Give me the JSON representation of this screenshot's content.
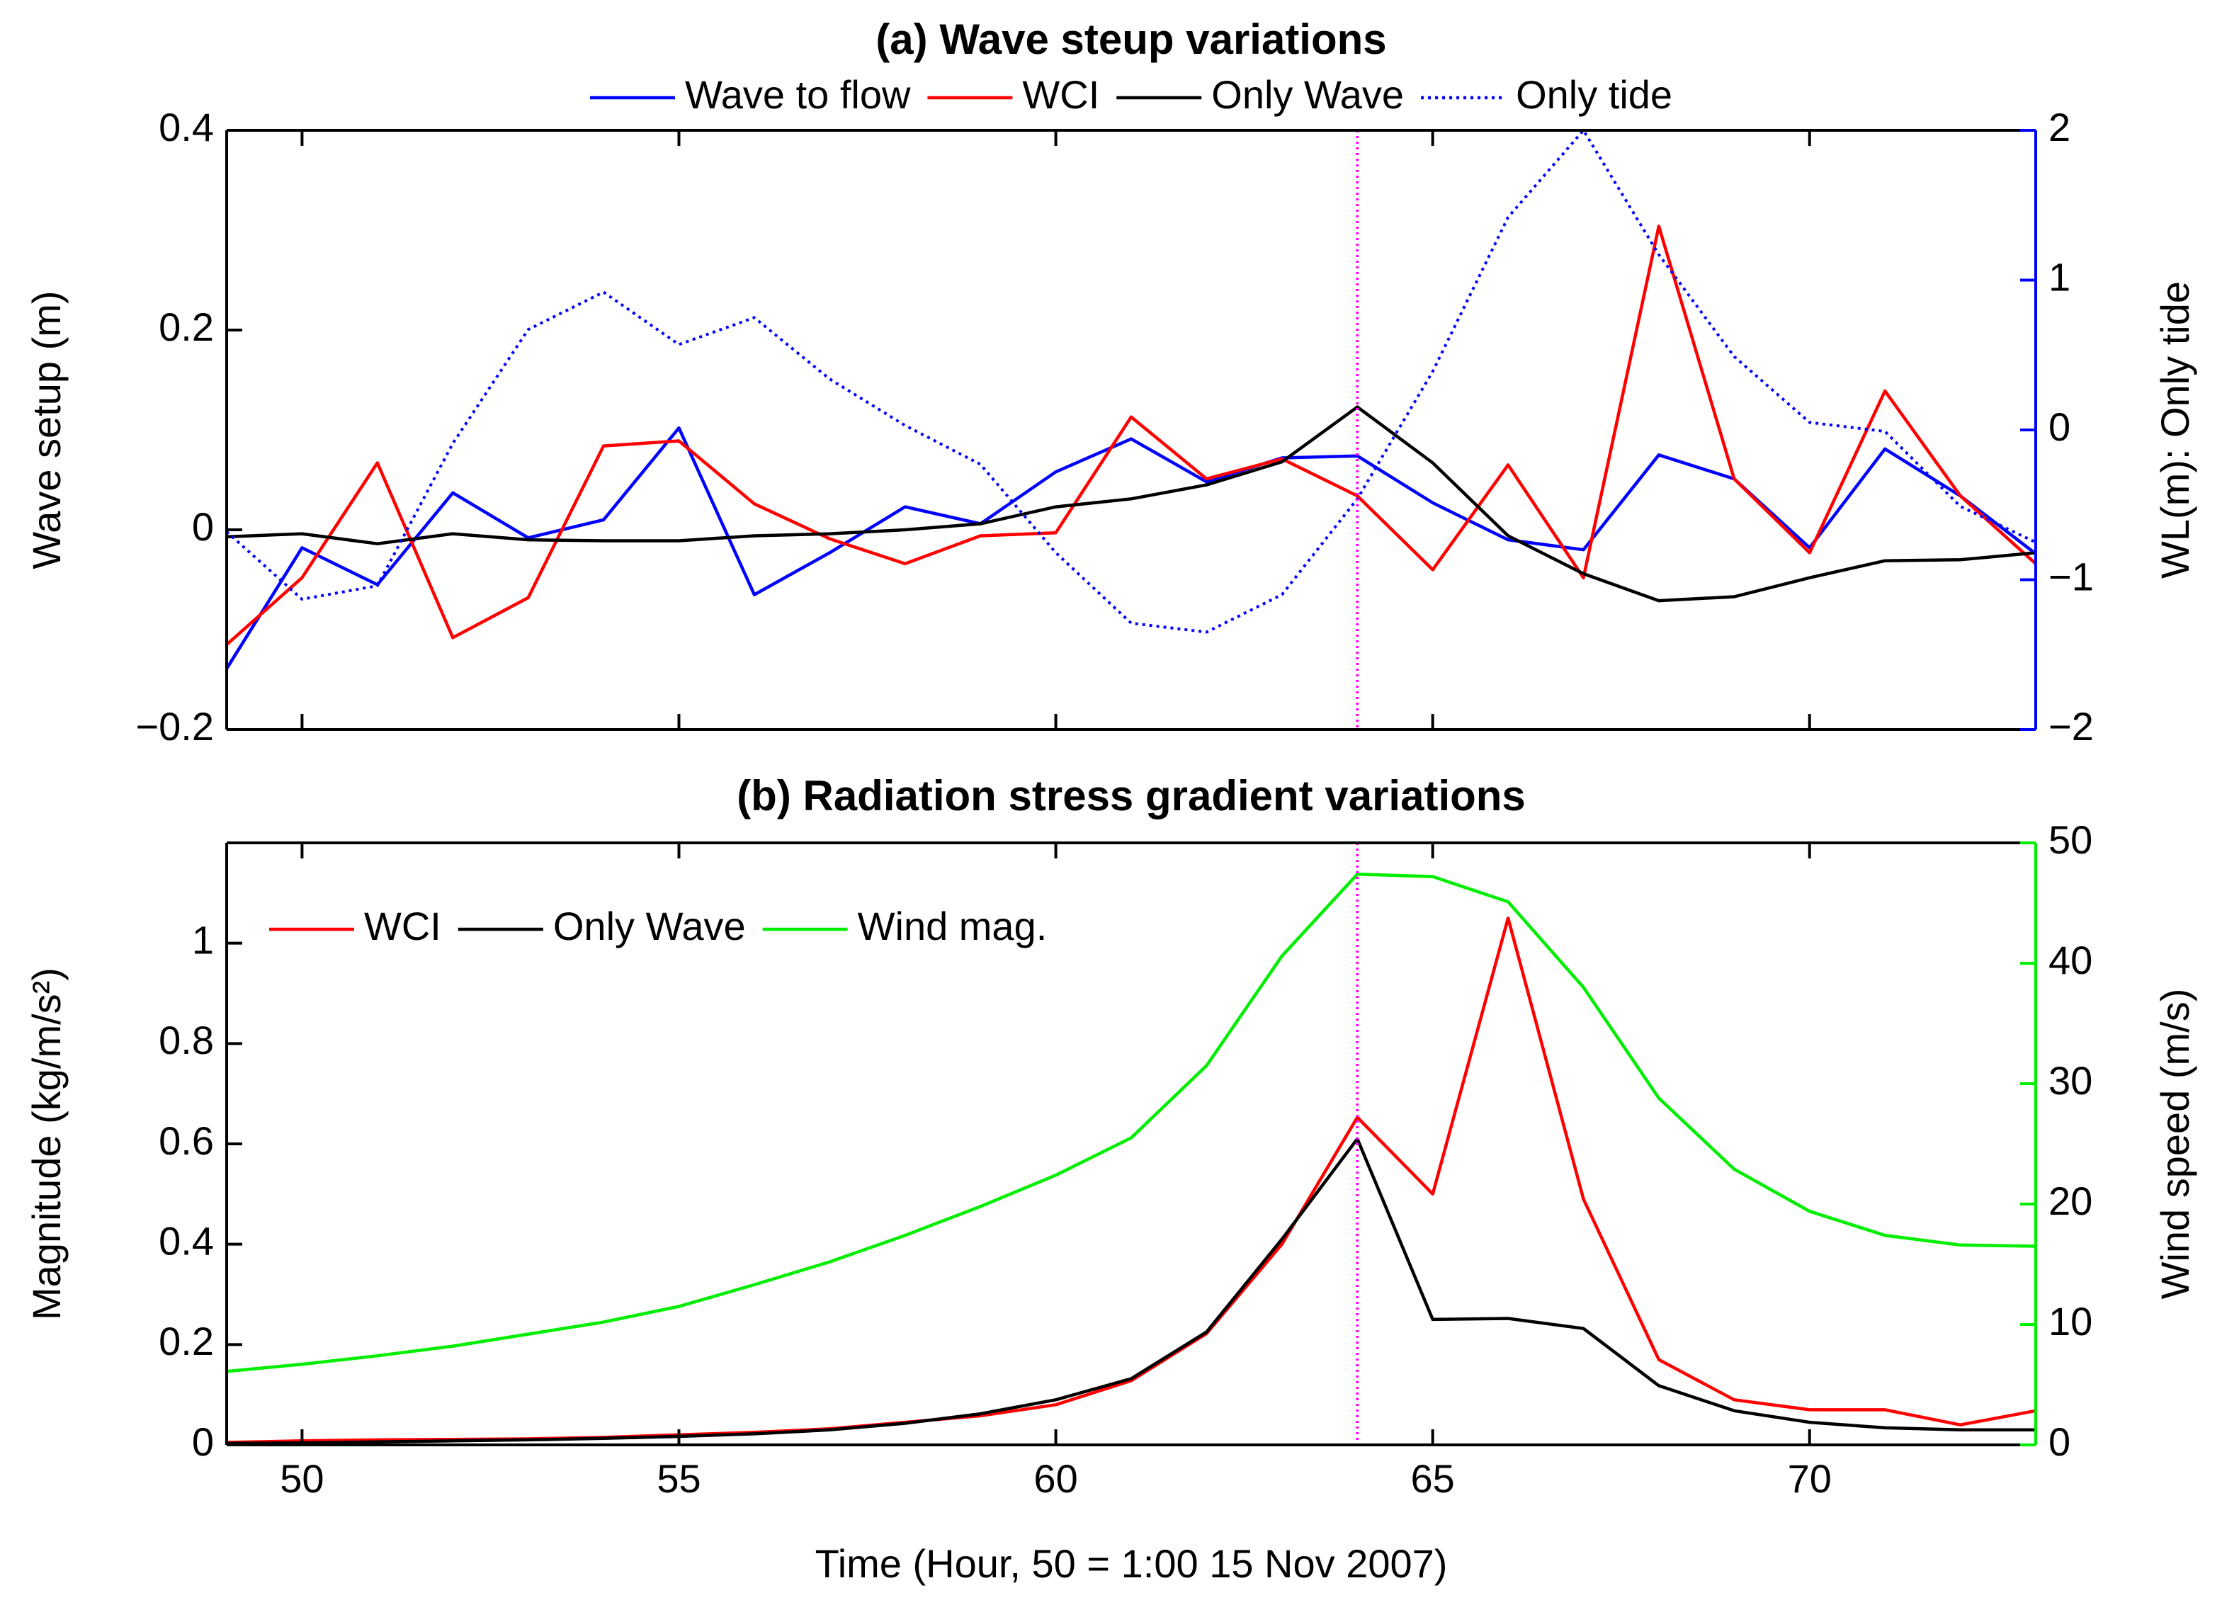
{
  "chart_data": [
    {
      "type": "line",
      "title": "(a) Wave steup variations",
      "x": [
        49,
        50,
        51,
        52,
        53,
        54,
        55,
        56,
        57,
        58,
        59,
        60,
        61,
        62,
        63,
        64,
        65,
        66,
        67,
        68,
        69,
        70,
        71,
        72,
        73
      ],
      "xlim": [
        49,
        73
      ],
      "xticks": [
        50,
        55,
        60,
        65,
        70
      ],
      "show_xtick_labels": false,
      "ylabel": "Wave setup (m)",
      "ylim": [
        -0.2,
        0.4
      ],
      "yticks": [
        {
          "value": -0.2,
          "label": "−0.2"
        },
        0,
        0.2,
        0.4
      ],
      "y2label": "WL(m): Only tide",
      "y2lim": [
        -2,
        2
      ],
      "y2ticks": [
        {
          "value": -2,
          "label": "−2"
        },
        {
          "value": -1,
          "label": "−1"
        },
        0,
        1,
        2
      ],
      "y2color": "#0000ff",
      "legend": "top",
      "reference_line": {
        "x": 64,
        "color": "#ff00ff"
      },
      "series": [
        {
          "name": "Wave to flow",
          "color": "#0000ff",
          "values": [
            -0.139,
            -0.018,
            -0.055,
            0.037,
            -0.008,
            0.01,
            0.102,
            -0.065,
            -0.023,
            0.023,
            0.006,
            0.058,
            0.091,
            0.048,
            0.072,
            0.074,
            0.027,
            -0.01,
            -0.02,
            0.075,
            0.051,
            -0.018,
            0.081,
            0.034,
            -0.024
          ]
        },
        {
          "name": "WCI",
          "color": "#ff0000",
          "values": [
            -0.115,
            -0.048,
            0.067,
            -0.108,
            -0.068,
            0.084,
            0.089,
            0.026,
            -0.009,
            -0.034,
            -0.006,
            -0.003,
            0.113,
            0.051,
            0.071,
            0.034,
            -0.04,
            0.065,
            -0.048,
            0.304,
            0.051,
            -0.023,
            0.139,
            0.034,
            -0.034
          ]
        },
        {
          "name": "Only Wave",
          "color": "#000000",
          "values": [
            -0.007,
            -0.004,
            -0.014,
            -0.004,
            -0.01,
            -0.011,
            -0.011,
            -0.006,
            -0.004,
            0.0,
            0.006,
            0.023,
            0.031,
            0.045,
            0.068,
            0.123,
            0.067,
            -0.006,
            -0.044,
            -0.071,
            -0.067,
            -0.048,
            -0.031,
            -0.03,
            -0.023
          ]
        },
        {
          "name": "Only tide",
          "color": "#0000ff",
          "dash": "dotted",
          "axis": "y2",
          "values": [
            -0.68,
            -1.13,
            -1.04,
            -0.09,
            0.67,
            0.92,
            0.57,
            0.75,
            0.34,
            0.03,
            -0.23,
            -0.82,
            -1.29,
            -1.35,
            -1.1,
            -0.46,
            0.39,
            1.42,
            2.0,
            1.17,
            0.49,
            0.05,
            -0.01,
            -0.51,
            -0.75
          ]
        }
      ]
    },
    {
      "type": "line",
      "title": "(b) Radiation stress gradient variations",
      "x": [
        49,
        50,
        51,
        52,
        53,
        54,
        55,
        56,
        57,
        58,
        59,
        60,
        61,
        62,
        63,
        64,
        65,
        66,
        67,
        68,
        69,
        70,
        71,
        72,
        73
      ],
      "xlim": [
        49,
        73
      ],
      "xticks": [
        50,
        55,
        60,
        65,
        70
      ],
      "show_xtick_labels": true,
      "xlabel": "Time (Hour, 50 = 1:00 15 Nov 2007)",
      "ylabel": "Magnitude (kg/m/s²)",
      "ylim": [
        0,
        1.2
      ],
      "yticks": [
        0,
        0.2,
        0.4,
        0.6,
        0.8,
        1
      ],
      "y2label": "Wind speed (m/s)",
      "y2lim": [
        0,
        50
      ],
      "y2ticks": [
        0,
        10,
        20,
        30,
        40,
        50
      ],
      "y2color": "#00ee00",
      "legend": "upper left",
      "reference_line": {
        "x": 64,
        "color": "#ff00ff"
      },
      "series": [
        {
          "name": "WCI",
          "color": "#ff0000",
          "values": [
            0.005,
            0.008,
            0.01,
            0.011,
            0.012,
            0.015,
            0.02,
            0.025,
            0.032,
            0.045,
            0.058,
            0.08,
            0.128,
            0.222,
            0.4,
            0.653,
            0.5,
            1.05,
            0.49,
            0.17,
            0.09,
            0.07,
            0.07,
            0.04,
            0.068
          ]
        },
        {
          "name": "Only Wave",
          "color": "#000000",
          "values": [
            0.003,
            0.004,
            0.006,
            0.008,
            0.01,
            0.013,
            0.017,
            0.022,
            0.03,
            0.043,
            0.062,
            0.09,
            0.132,
            0.225,
            0.41,
            0.61,
            0.25,
            0.252,
            0.232,
            0.118,
            0.068,
            0.045,
            0.034,
            0.03,
            0.03
          ]
        },
        {
          "name": "Wind mag.",
          "color": "#00ee00",
          "axis": "y2",
          "values": [
            6.1,
            6.7,
            7.4,
            8.2,
            9.2,
            10.2,
            11.5,
            13.3,
            15.2,
            17.4,
            19.8,
            22.4,
            25.5,
            31.5,
            40.6,
            47.4,
            47.2,
            45.1,
            38.0,
            28.8,
            22.9,
            19.4,
            17.4,
            16.6,
            16.5
          ]
        }
      ]
    }
  ]
}
